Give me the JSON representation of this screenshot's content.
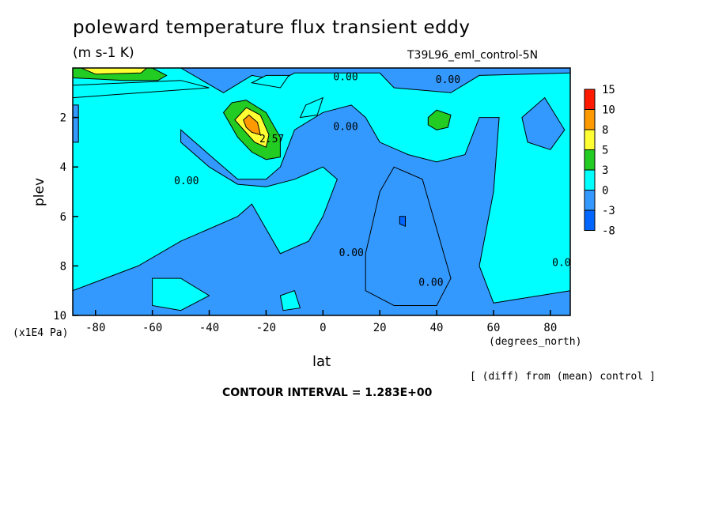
{
  "header": {
    "title": "poleward temperature flux transient eddy",
    "units": "(m s-1 K)",
    "run_label": "T39L96_eml_control-5N"
  },
  "footer": {
    "diff_note": "[ (diff) from (mean) control ]",
    "contour_interval": "CONTOUR INTERVAL = 1.283E+00"
  },
  "chart_data": {
    "type": "heatmap",
    "xlabel": "lat",
    "xunit": "(degrees_north)",
    "ylabel": "plev",
    "yunit": "(x1E4 Pa)",
    "xlim": [
      -88,
      87
    ],
    "ylim": [
      0,
      10
    ],
    "y_inverted": true,
    "xticks": [
      -80,
      -60,
      -40,
      -20,
      0,
      20,
      40,
      60,
      80
    ],
    "yticks": [
      2,
      4,
      6,
      8,
      10
    ],
    "colorbar": {
      "labels": [
        "15",
        "10",
        "8",
        "5",
        "3",
        "0",
        "-3",
        "-8"
      ],
      "colors": [
        "#ff1a00",
        "#ff9900",
        "#ffff33",
        "#22cc22",
        "#00ffff",
        "#3399ff",
        "#0066ff"
      ]
    },
    "background_color": "#00ffff",
    "contour_labels": [
      {
        "text": "0.00",
        "lat": 8,
        "plev": 0.5
      },
      {
        "text": "0.00",
        "lat": 44,
        "plev": 0.6
      },
      {
        "text": "0.00",
        "lat": 8,
        "plev": 2.5
      },
      {
        "text": "0.00",
        "lat": -48,
        "plev": 4.7
      },
      {
        "text": "0.00",
        "lat": 10,
        "plev": 7.6
      },
      {
        "text": "0.00",
        "lat": 38,
        "plev": 8.8
      },
      {
        "text": "0.00",
        "lat": 85,
        "plev": 8.0
      },
      {
        "text": "2.57",
        "lat": -18,
        "plev": 3.0
      }
    ],
    "regions": [
      {
        "level": "-3 to 0",
        "color": "#3399ff",
        "points": [
          [
            -88,
            0
          ],
          [
            -50,
            0
          ],
          [
            -35,
            1.0
          ],
          [
            -25,
            0.3
          ],
          [
            -15,
            0.5
          ],
          [
            -10,
            0.2
          ],
          [
            20,
            0.2
          ],
          [
            25,
            0.8
          ],
          [
            45,
            1.0
          ],
          [
            55,
            0.3
          ],
          [
            87,
            0.2
          ],
          [
            87,
            0
          ],
          [
            -88,
            0
          ]
        ]
      },
      {
        "level": "-3 to 0",
        "color": "#3399ff",
        "points": [
          [
            -50,
            2.5
          ],
          [
            -40,
            3.5
          ],
          [
            -30,
            4.5
          ],
          [
            -20,
            4.5
          ],
          [
            -15,
            4.0
          ],
          [
            -10,
            2.5
          ],
          [
            0,
            1.8
          ],
          [
            10,
            1.5
          ],
          [
            15,
            2.0
          ],
          [
            20,
            3.0
          ],
          [
            30,
            3.5
          ],
          [
            40,
            3.8
          ],
          [
            50,
            3.5
          ],
          [
            55,
            2.0
          ],
          [
            62,
            2.0
          ],
          [
            60,
            5.0
          ],
          [
            55,
            8.0
          ],
          [
            60,
            9.5
          ],
          [
            87,
            9.0
          ],
          [
            87,
            10
          ],
          [
            -88,
            10
          ],
          [
            -88,
            9.0
          ],
          [
            -65,
            8.0
          ],
          [
            -50,
            7.0
          ],
          [
            -40,
            6.5
          ],
          [
            -30,
            6.0
          ],
          [
            -25,
            5.5
          ],
          [
            -20,
            6.5
          ],
          [
            -15,
            7.5
          ],
          [
            -5,
            7.0
          ],
          [
            0,
            6.0
          ],
          [
            5,
            4.5
          ],
          [
            0,
            4.0
          ],
          [
            -10,
            4.5
          ],
          [
            -20,
            4.8
          ],
          [
            -30,
            4.7
          ],
          [
            -40,
            4.0
          ],
          [
            -50,
            3.0
          ]
        ]
      },
      {
        "level": "-3 to 0",
        "color": "#3399ff",
        "points": [
          [
            15,
            7.5
          ],
          [
            20,
            5.0
          ],
          [
            25,
            4.0
          ],
          [
            35,
            4.5
          ],
          [
            40,
            6.5
          ],
          [
            45,
            8.5
          ],
          [
            40,
            9.6
          ],
          [
            25,
            9.6
          ],
          [
            15,
            9.0
          ]
        ]
      },
      {
        "level": "-3 to 0",
        "color": "#3399ff",
        "points": [
          [
            70,
            2.0
          ],
          [
            78,
            1.2
          ],
          [
            85,
            2.5
          ],
          [
            80,
            3.3
          ],
          [
            72,
            3.0
          ]
        ]
      },
      {
        "level": "-3 to 0",
        "color": "#3399ff",
        "points": [
          [
            -88,
            1.5
          ],
          [
            -86,
            1.5
          ],
          [
            -86,
            3.0
          ],
          [
            -88,
            3.0
          ]
        ]
      },
      {
        "level": "0 to 3",
        "color": "#00ffff",
        "points": [
          [
            -25,
            0.6
          ],
          [
            -15,
            0.8
          ],
          [
            -12,
            0.3
          ],
          [
            -20,
            0.3
          ]
        ]
      },
      {
        "level": "0 to 3",
        "color": "#00ffff",
        "points": [
          [
            -88,
            0.7
          ],
          [
            -50,
            0.5
          ],
          [
            -40,
            0.8
          ],
          [
            -88,
            1.2
          ]
        ]
      },
      {
        "level": "0 to 3",
        "color": "#00ffff",
        "points": [
          [
            -6,
            1.5
          ],
          [
            0,
            1.2
          ],
          [
            -2,
            1.9
          ],
          [
            -8,
            2.0
          ]
        ]
      },
      {
        "level": "0 to 3",
        "color": "#00ffff",
        "points": [
          [
            -60,
            8.5
          ],
          [
            -50,
            8.5
          ],
          [
            -40,
            9.2
          ],
          [
            -50,
            9.8
          ],
          [
            -60,
            9.6
          ]
        ]
      },
      {
        "level": "0 to 3",
        "color": "#00ffff",
        "points": [
          [
            -15,
            9.2
          ],
          [
            -10,
            9.0
          ],
          [
            -8,
            9.7
          ],
          [
            -14,
            9.8
          ]
        ]
      },
      {
        "level": "3 to 5",
        "color": "#22cc22",
        "points": [
          [
            -88,
            0
          ],
          [
            -60,
            0
          ],
          [
            -55,
            0.3
          ],
          [
            -58,
            0.5
          ],
          [
            -70,
            0.5
          ],
          [
            -88,
            0.4
          ]
        ]
      },
      {
        "level": "3 to 5",
        "color": "#22cc22",
        "points": [
          [
            -35,
            1.8
          ],
          [
            -32,
            1.4
          ],
          [
            -27,
            1.3
          ],
          [
            -20,
            1.8
          ],
          [
            -15,
            2.8
          ],
          [
            -15,
            3.6
          ],
          [
            -20,
            3.7
          ],
          [
            -25,
            3.4
          ],
          [
            -30,
            2.8
          ]
        ]
      },
      {
        "level": "3 to 5",
        "color": "#22cc22",
        "points": [
          [
            37,
            2.0
          ],
          [
            40,
            1.7
          ],
          [
            45,
            1.9
          ],
          [
            44,
            2.4
          ],
          [
            40,
            2.5
          ],
          [
            37,
            2.3
          ]
        ]
      },
      {
        "level": "5 to 8",
        "color": "#ffff33",
        "points": [
          [
            -31,
            2.1
          ],
          [
            -27,
            1.6
          ],
          [
            -22,
            1.9
          ],
          [
            -19,
            2.7
          ],
          [
            -20,
            3.2
          ],
          [
            -24,
            3.0
          ]
        ]
      },
      {
        "level": "5 to 8",
        "color": "#ffff33",
        "points": [
          [
            -85,
            0
          ],
          [
            -62,
            0
          ],
          [
            -64,
            0.2
          ],
          [
            -80,
            0.25
          ]
        ]
      },
      {
        "level": "8 to 10",
        "color": "#ff9900",
        "points": [
          [
            -28,
            2.1
          ],
          [
            -26,
            1.9
          ],
          [
            -23,
            2.2
          ],
          [
            -22,
            2.7
          ],
          [
            -25,
            2.6
          ],
          [
            -27,
            2.4
          ]
        ]
      },
      {
        "level": "-8 to -3",
        "color": "#0066ff",
        "points": [
          [
            27,
            6.0
          ],
          [
            29,
            6.0
          ],
          [
            29,
            6.4
          ],
          [
            27,
            6.3
          ]
        ]
      }
    ]
  }
}
